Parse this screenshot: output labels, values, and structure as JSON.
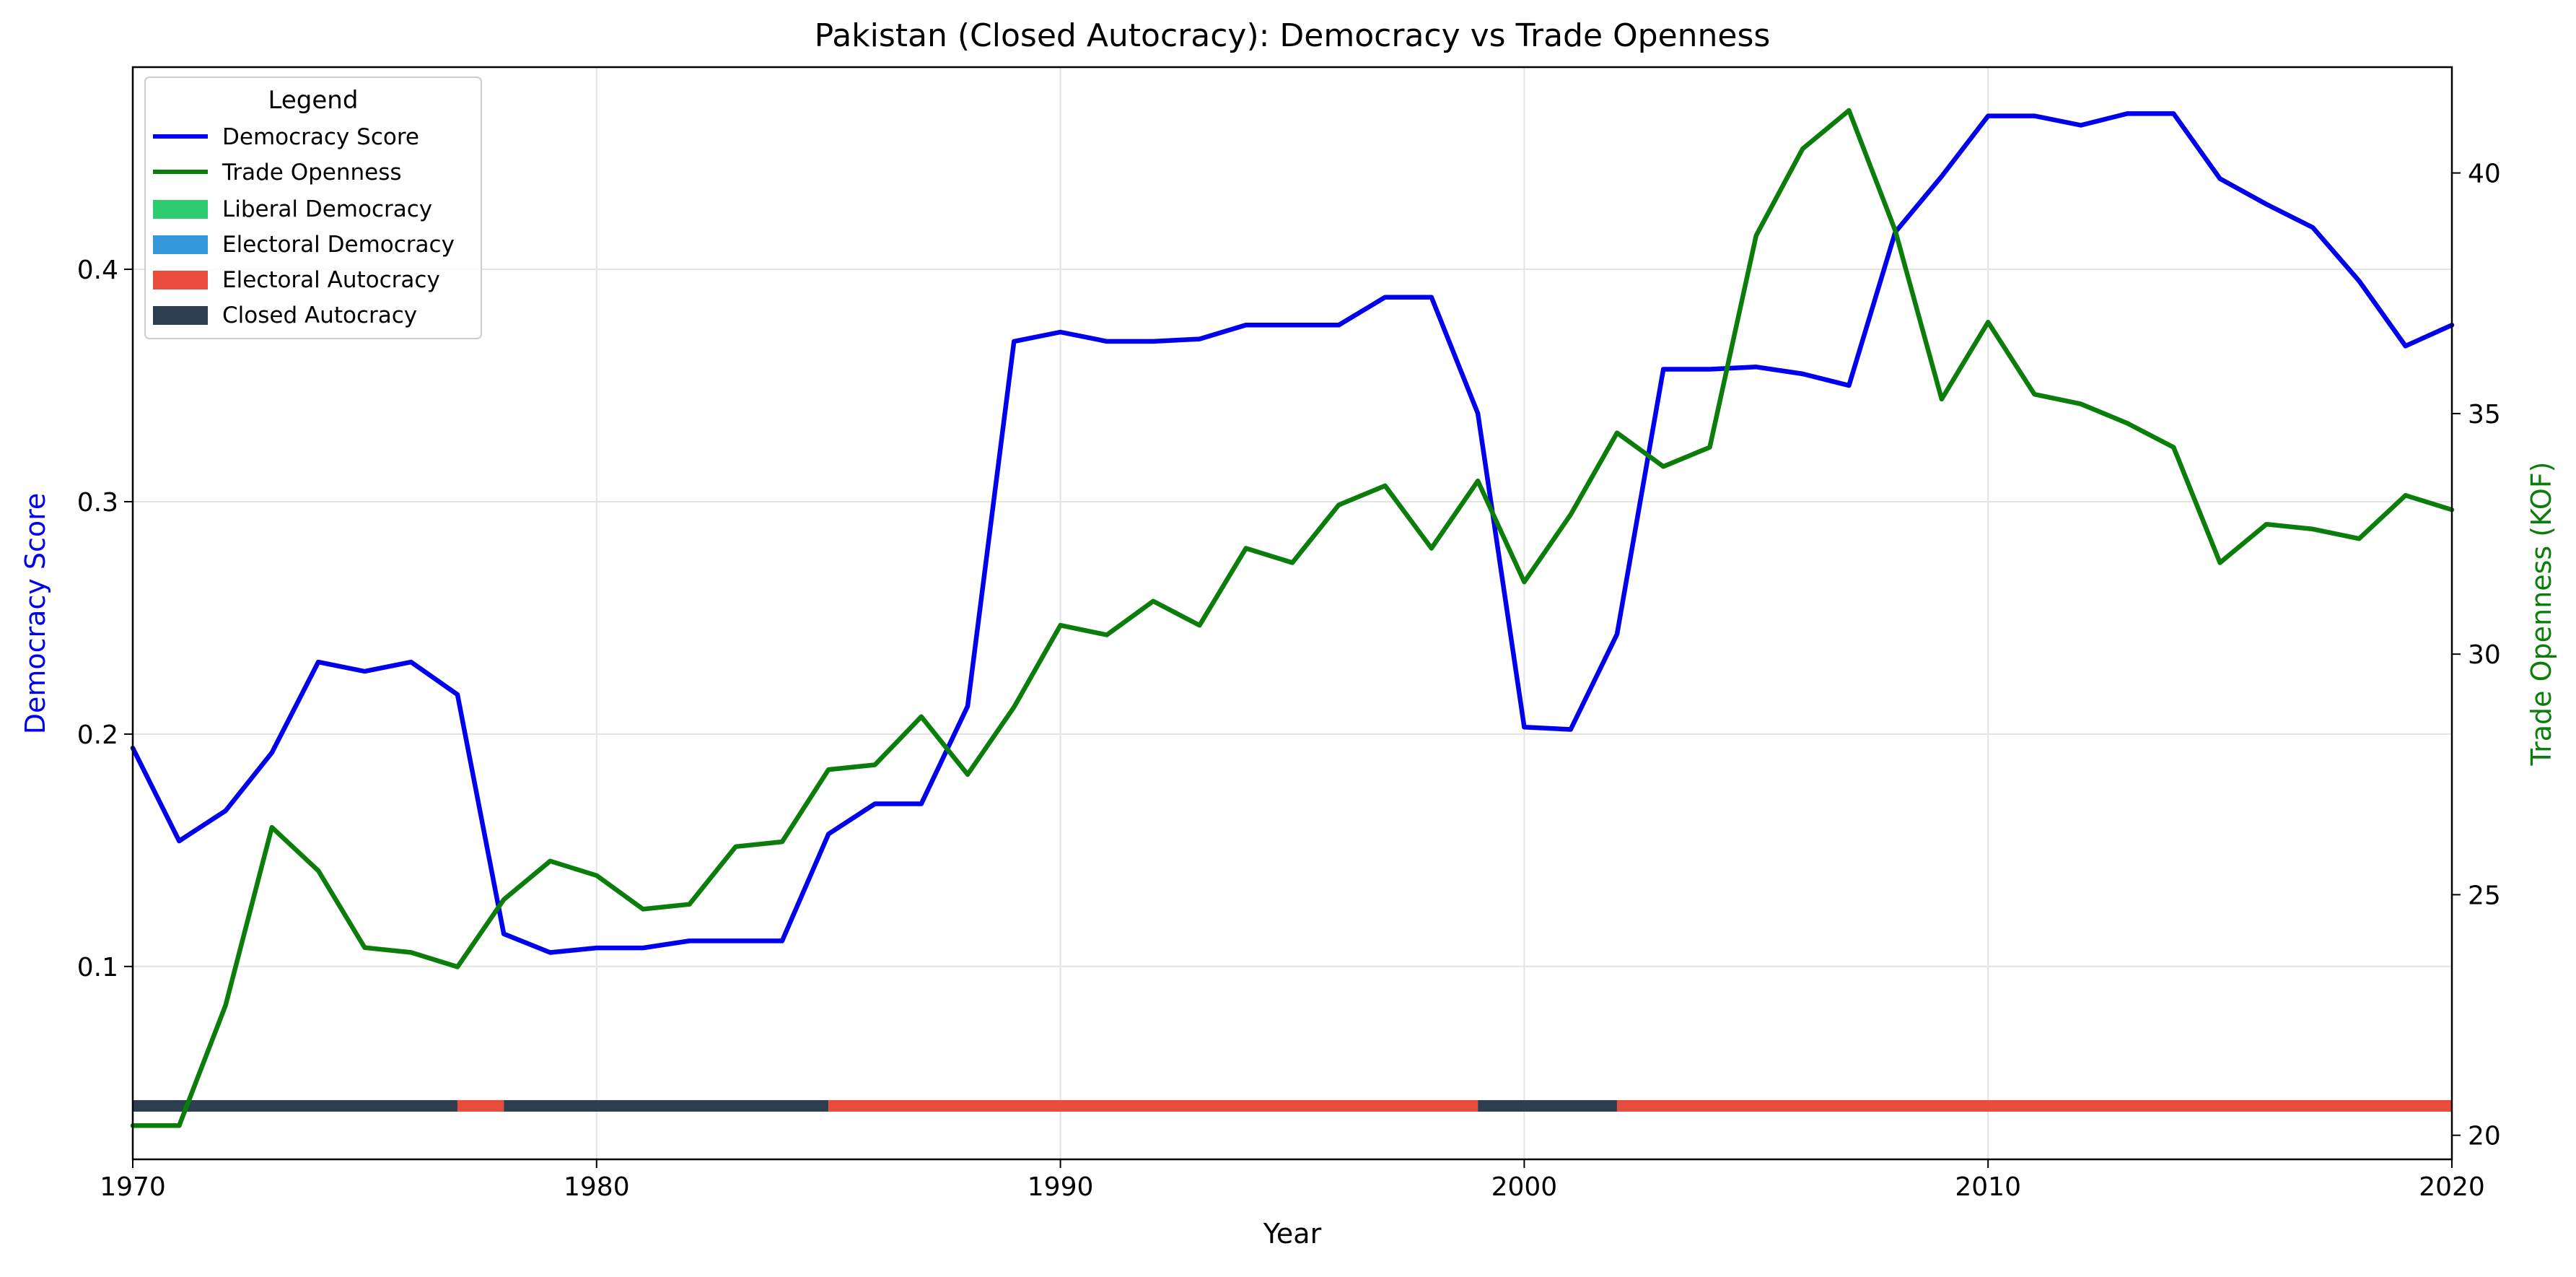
{
  "chart_data": {
    "type": "line",
    "title": "Pakistan (Closed Autocracy): Democracy vs Trade Openness",
    "xlabel": "Year",
    "ylabel_left": "Democracy Score",
    "ylabel_right": "Trade Openness (KOF)",
    "xlim": [
      1970,
      2020
    ],
    "ylim_left": [
      0.017,
      0.487
    ],
    "ylim_right": [
      19.5,
      42.2
    ],
    "x_ticks": [
      "1970",
      "1980",
      "1990",
      "2000",
      "2010",
      "2020"
    ],
    "y_ticks_left": [
      "0.1",
      "0.2",
      "0.3",
      "0.4"
    ],
    "y_ticks_right": [
      "20",
      "25",
      "30",
      "35",
      "40"
    ],
    "grid": true,
    "legend": {
      "title": "Legend",
      "placement": "top-left",
      "entries": [
        "Democracy Score",
        "Trade Openness",
        "Liberal Democracy",
        "Electoral Democracy",
        "Electoral Autocracy",
        "Closed Autocracy"
      ]
    },
    "colors": {
      "democracy": "#0000ee",
      "trade": "#0a7d0a",
      "liberal_democracy": "#2ecc71",
      "electoral_democracy": "#3498db",
      "electoral_autocracy": "#e74c3c",
      "closed_autocracy": "#2c3e50"
    },
    "x": [
      1970,
      1971,
      1972,
      1973,
      1974,
      1975,
      1976,
      1977,
      1978,
      1979,
      1980,
      1981,
      1982,
      1983,
      1984,
      1985,
      1986,
      1987,
      1988,
      1989,
      1990,
      1991,
      1992,
      1993,
      1994,
      1995,
      1996,
      1997,
      1998,
      1999,
      2000,
      2001,
      2002,
      2003,
      2004,
      2005,
      2006,
      2007,
      2008,
      2009,
      2010,
      2011,
      2012,
      2013,
      2014,
      2015,
      2016,
      2017,
      2018,
      2019,
      2020
    ],
    "series": [
      {
        "name": "Democracy Score",
        "axis": "left",
        "values": [
          0.194,
          0.154,
          0.167,
          0.192,
          0.231,
          0.227,
          0.231,
          0.217,
          0.114,
          0.106,
          0.108,
          0.108,
          0.111,
          0.111,
          0.111,
          0.157,
          0.17,
          0.17,
          0.212,
          0.369,
          0.373,
          0.369,
          0.369,
          0.37,
          0.376,
          0.376,
          0.376,
          0.388,
          0.388,
          0.338,
          0.203,
          0.202,
          0.243,
          0.357,
          0.357,
          0.358,
          0.355,
          0.35,
          0.416,
          0.44,
          0.466,
          0.466,
          0.462,
          0.467,
          0.467,
          0.439,
          0.428,
          0.418,
          0.395,
          0.367,
          0.376
        ]
      },
      {
        "name": "Trade Openness",
        "axis": "right",
        "values": [
          20.2,
          20.2,
          22.7,
          26.4,
          25.5,
          23.9,
          23.8,
          23.5,
          24.9,
          25.7,
          25.4,
          24.7,
          24.8,
          26.0,
          26.1,
          27.6,
          27.7,
          28.7,
          27.5,
          28.9,
          30.6,
          30.4,
          31.1,
          30.6,
          32.2,
          31.9,
          33.1,
          33.5,
          32.2,
          33.6,
          31.5,
          32.9,
          34.6,
          33.9,
          34.3,
          38.7,
          40.5,
          41.3,
          38.8,
          35.3,
          36.9,
          35.4,
          35.2,
          34.8,
          34.3,
          31.9,
          32.7,
          32.6,
          32.4,
          33.3,
          33.0
        ]
      }
    ],
    "regime_bar": {
      "level": 0.04,
      "segments": [
        {
          "start": 1970,
          "end": 1977,
          "regime": "Closed Autocracy"
        },
        {
          "start": 1977,
          "end": 1978,
          "regime": "Electoral Autocracy"
        },
        {
          "start": 1978,
          "end": 1985,
          "regime": "Closed Autocracy"
        },
        {
          "start": 1985,
          "end": 1999,
          "regime": "Electoral Autocracy"
        },
        {
          "start": 1999,
          "end": 2002,
          "regime": "Closed Autocracy"
        },
        {
          "start": 2002,
          "end": 2020,
          "regime": "Electoral Autocracy"
        }
      ]
    }
  }
}
